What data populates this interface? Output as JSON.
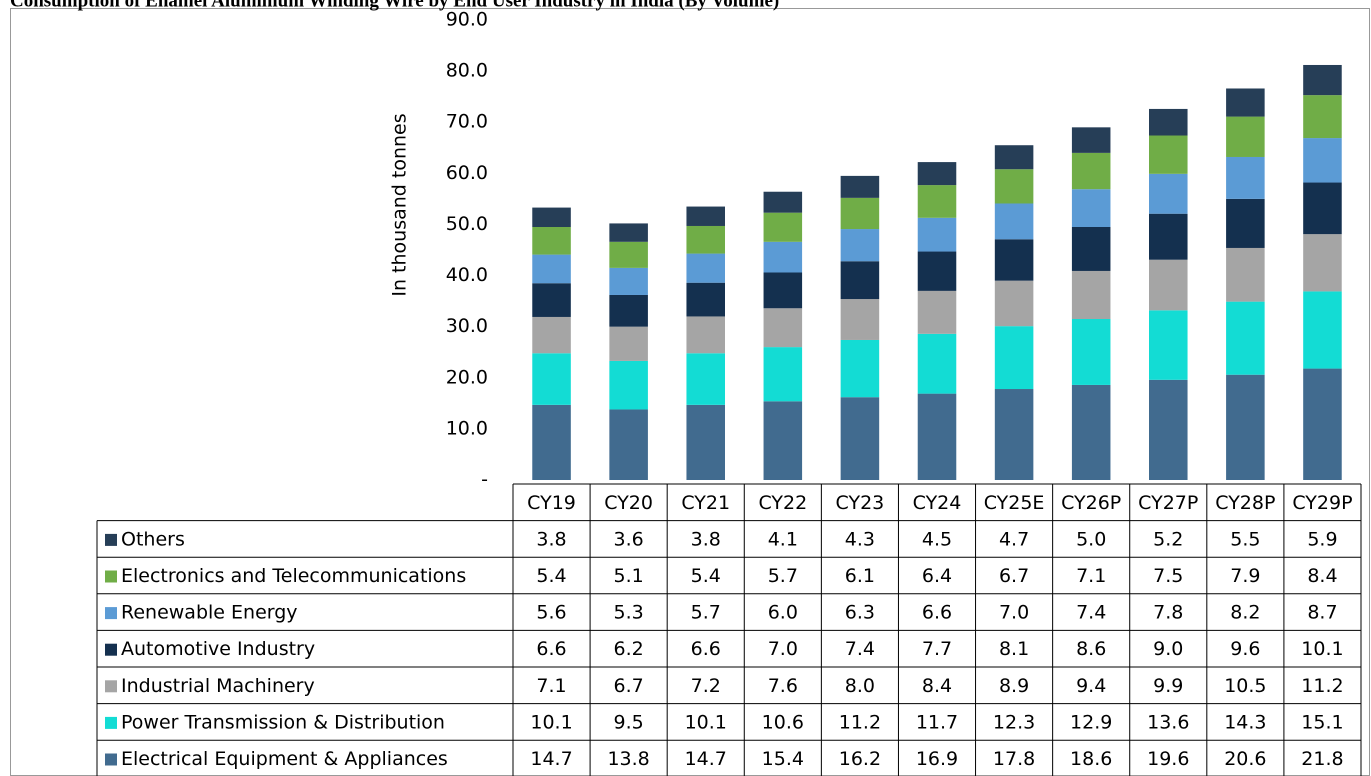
{
  "chart_data": {
    "type": "bar",
    "stacked": true,
    "title": "Consumption of Enamel Aluminium Winding Wire by End User Industry in India (By Volume)",
    "y_label": "In thousand tonnes",
    "categories": [
      "CY19",
      "CY20",
      "CY21",
      "CY22",
      "CY23",
      "CY24",
      "CY25E",
      "CY26P",
      "CY27P",
      "CY28P",
      "CY29P"
    ],
    "ylim": [
      0,
      90
    ],
    "yticks": [
      {
        "value": 0,
        "label": "-"
      },
      {
        "value": 10,
        "label": "10.0"
      },
      {
        "value": 20,
        "label": "20.0"
      },
      {
        "value": 30,
        "label": "30.0"
      },
      {
        "value": 40,
        "label": "40.0"
      },
      {
        "value": 50,
        "label": "50.0"
      },
      {
        "value": 60,
        "label": "60.0"
      },
      {
        "value": 70,
        "label": "70.0"
      },
      {
        "value": 80,
        "label": "80.0"
      },
      {
        "value": 90,
        "label": "90.0"
      }
    ],
    "series": [
      {
        "name": "Electrical Equipment & Appliances",
        "color": "#416b8f",
        "values": [
          14.7,
          13.8,
          14.7,
          15.4,
          16.2,
          16.9,
          17.8,
          18.6,
          19.6,
          20.6,
          21.8
        ],
        "value_labels": [
          "14.7",
          "13.8",
          "14.7",
          "15.4",
          "16.2",
          "16.9",
          "17.8",
          "18.6",
          "19.6",
          "20.6",
          "21.8"
        ]
      },
      {
        "name": "Power Transmission & Distribution",
        "color": "#13dcd4",
        "values": [
          10.1,
          9.5,
          10.1,
          10.6,
          11.2,
          11.7,
          12.3,
          12.9,
          13.6,
          14.3,
          15.1
        ],
        "value_labels": [
          "10.1",
          "9.5",
          "10.1",
          "10.6",
          "11.2",
          "11.7",
          "12.3",
          "12.9",
          "13.6",
          "14.3",
          "15.1"
        ]
      },
      {
        "name": "Industrial Machinery",
        "color": "#a5a5a5",
        "values": [
          7.1,
          6.7,
          7.2,
          7.6,
          8.0,
          8.4,
          8.9,
          9.4,
          9.9,
          10.5,
          11.2
        ],
        "value_labels": [
          "7.1",
          "6.7",
          "7.2",
          "7.6",
          "8.0",
          "8.4",
          "8.9",
          "9.4",
          "9.9",
          "10.5",
          "11.2"
        ]
      },
      {
        "name": "Automotive Industry",
        "color": "#14304f",
        "values": [
          6.6,
          6.2,
          6.6,
          7.0,
          7.4,
          7.7,
          8.1,
          8.6,
          9.0,
          9.6,
          10.1
        ],
        "value_labels": [
          "6.6",
          "6.2",
          "6.6",
          "7.0",
          "7.4",
          "7.7",
          "8.1",
          "8.6",
          "9.0",
          "9.6",
          "10.1"
        ]
      },
      {
        "name": "Renewable Energy",
        "color": "#5b9bd5",
        "values": [
          5.6,
          5.3,
          5.7,
          6.0,
          6.3,
          6.6,
          7.0,
          7.4,
          7.8,
          8.2,
          8.7
        ],
        "value_labels": [
          "5.6",
          "5.3",
          "5.7",
          "6.0",
          "6.3",
          "6.6",
          "7.0",
          "7.4",
          "7.8",
          "8.2",
          "8.7"
        ]
      },
      {
        "name": "Electronics and Telecommunications",
        "color": "#70ad47",
        "values": [
          5.4,
          5.1,
          5.4,
          5.7,
          6.1,
          6.4,
          6.7,
          7.1,
          7.5,
          7.9,
          8.4
        ],
        "value_labels": [
          "5.4",
          "5.1",
          "5.4",
          "5.7",
          "6.1",
          "6.4",
          "6.7",
          "7.1",
          "7.5",
          "7.9",
          "8.4"
        ]
      },
      {
        "name": "Others",
        "color": "#263e57",
        "values": [
          3.8,
          3.6,
          3.8,
          4.1,
          4.3,
          4.5,
          4.7,
          5.0,
          5.2,
          5.5,
          5.9
        ],
        "value_labels": [
          "3.8",
          "3.6",
          "3.8",
          "4.1",
          "4.3",
          "4.5",
          "4.7",
          "5.0",
          "5.2",
          "5.5",
          "5.9"
        ]
      }
    ]
  }
}
